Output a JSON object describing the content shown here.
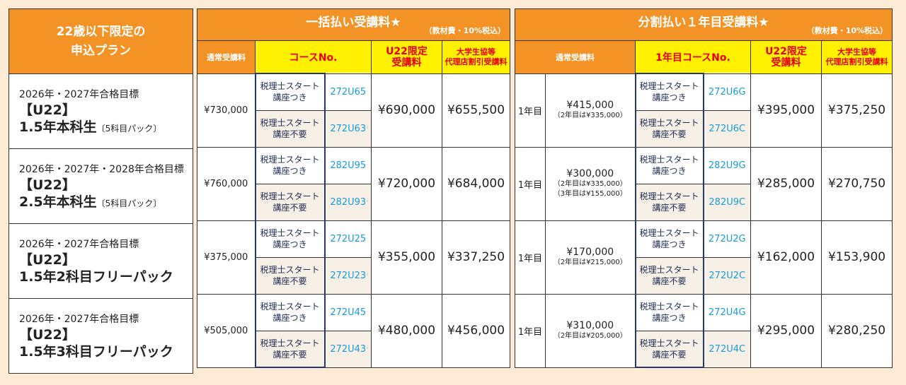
{
  "plan_header": [
    "22歳以下限定の",
    "申込プラン"
  ],
  "lump": {
    "title": "一括払い受講料★",
    "note": "（教材費・10%税込）",
    "cols": [
      "通常受講料",
      "コースNo.",
      "U22限定\n受講料",
      "大学生協等\n代理店割引受講料"
    ]
  },
  "inst": {
    "title": "分割払い１年目受講料★",
    "note": "（教材費・10%税込）",
    "cols": [
      "通常受講料",
      "1年目コースNo.",
      "U22限定\n受講料",
      "大学生協等\n代理店割引受講料"
    ]
  },
  "labels": {
    "with": "税理士スタート\n講座つき",
    "without": "税理士スタート\n講座不要",
    "year1": "1年目"
  },
  "colors": {
    "orange": "#f39225",
    "yellow": "#fff100",
    "red": "#e60012",
    "code_blue": "#1a9bd7",
    "navy": "#233a6b",
    "bg": "#fdebd6"
  },
  "rows": [
    {
      "target": "2026年・2027年合格目標",
      "tag": "【U22】",
      "name": "1.5年本科生",
      "pack": "〔5科目パック〕",
      "lump": {
        "regular": "¥730,000",
        "codes": [
          "272U65",
          "272U63"
        ],
        "u22": "¥690,000",
        "coop": "¥655,500"
      },
      "inst": {
        "regular": "¥415,000",
        "notes": [
          "（2年目は¥335,000）"
        ],
        "codes": [
          "272U6G",
          "272U6C"
        ],
        "u22": "¥395,000",
        "coop": "¥375,250"
      }
    },
    {
      "target": "2026年・2027年・2028年合格目標",
      "tag": "【U22】",
      "name": "2.5年本科生",
      "pack": "〔5科目パック〕",
      "lump": {
        "regular": "¥760,000",
        "codes": [
          "282U95",
          "282U93"
        ],
        "u22": "¥720,000",
        "coop": "¥684,000"
      },
      "inst": {
        "regular": "¥300,000",
        "notes": [
          "（2年目は¥335,000）",
          "（3年目は¥155,000）"
        ],
        "codes": [
          "282U9G",
          "282U9C"
        ],
        "u22": "¥285,000",
        "coop": "¥270,750"
      }
    },
    {
      "target": "2026年・2027年合格目標",
      "tag": "【U22】",
      "name": "1.5年2科目フリーパック",
      "pack": "",
      "lump": {
        "regular": "¥375,000",
        "codes": [
          "272U25",
          "272U23"
        ],
        "u22": "¥355,000",
        "coop": "¥337,250"
      },
      "inst": {
        "regular": "¥170,000",
        "notes": [
          "（2年目は¥215,000）"
        ],
        "codes": [
          "272U2G",
          "272U2C"
        ],
        "u22": "¥162,000",
        "coop": "¥153,900"
      }
    },
    {
      "target": "2026年・2027年合格目標",
      "tag": "【U22】",
      "name": "1.5年3科目フリーパック",
      "pack": "",
      "lump": {
        "regular": "¥505,000",
        "codes": [
          "272U45",
          "272U43"
        ],
        "u22": "¥480,000",
        "coop": "¥456,000"
      },
      "inst": {
        "regular": "¥310,000",
        "notes": [
          "（2年目は¥205,000）"
        ],
        "codes": [
          "272U4G",
          "272U4C"
        ],
        "u22": "¥295,000",
        "coop": "¥280,250"
      }
    }
  ]
}
